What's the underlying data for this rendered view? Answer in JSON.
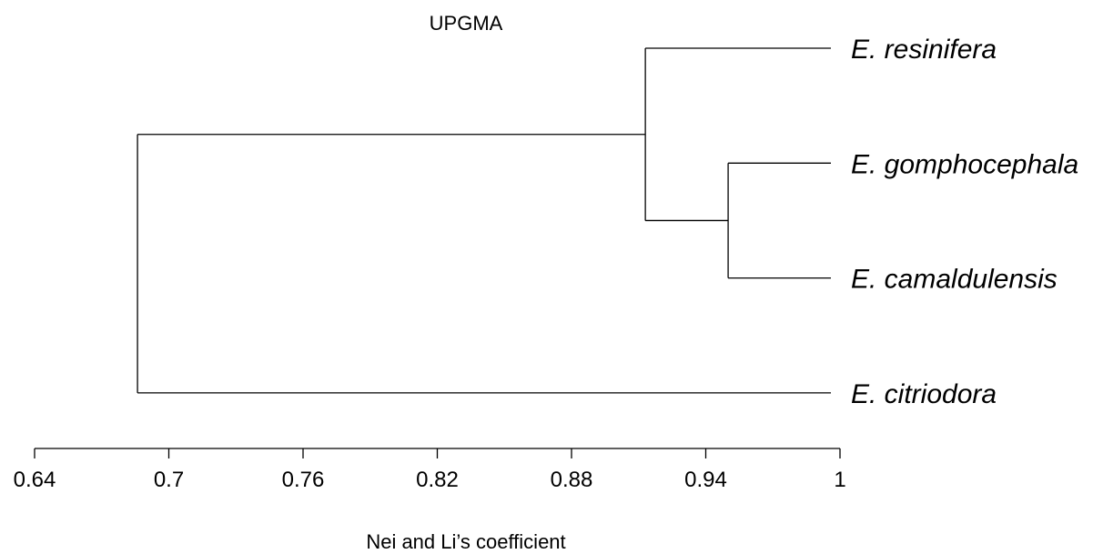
{
  "chart_data": {
    "type": "dendrogram",
    "title": "UPGMA",
    "xlabel": "Nei and Li’s coefficient",
    "xlim": [
      0.64,
      1
    ],
    "ticks": [
      "0.64",
      "0.7",
      "0.76",
      "0.82",
      "0.88",
      "0.94",
      "1"
    ],
    "tick_values": [
      0.64,
      0.7,
      0.76,
      0.82,
      0.88,
      0.94,
      1
    ],
    "leaves": [
      "E. resinifera",
      "E. gomphocephala",
      "E. camaldulensis",
      "E. citriodora"
    ],
    "merges": [
      {
        "id": "n1",
        "children": [
          "E. gomphocephala",
          "E. camaldulensis"
        ],
        "similarity": 0.95
      },
      {
        "id": "n2",
        "children": [
          "E. resinifera",
          "n1"
        ],
        "similarity": 0.913
      },
      {
        "id": "n3",
        "children": [
          "n2",
          "E. citriodora"
        ],
        "similarity": 0.686
      }
    ]
  }
}
